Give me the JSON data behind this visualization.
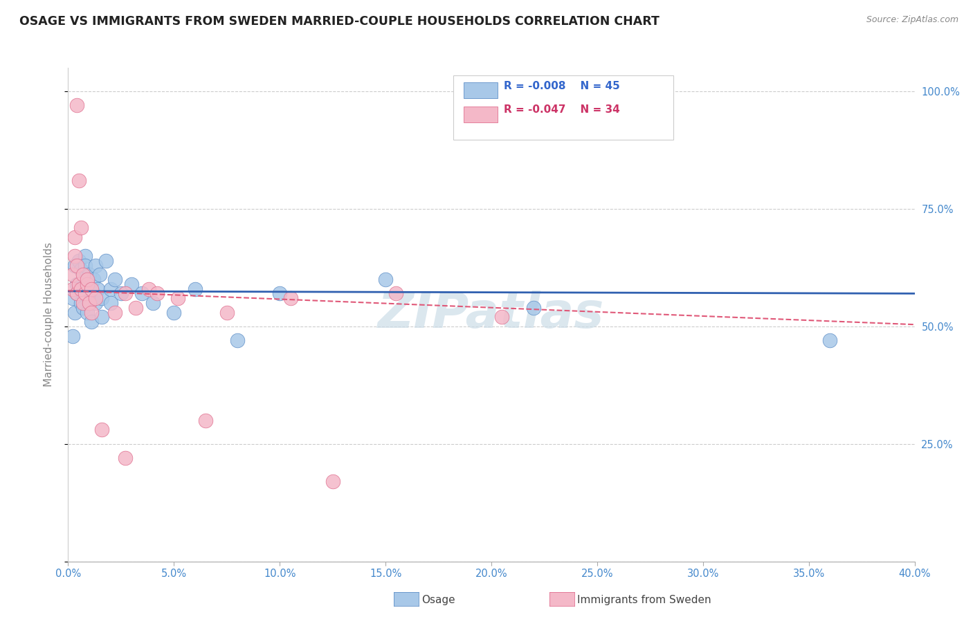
{
  "title": "OSAGE VS IMMIGRANTS FROM SWEDEN MARRIED-COUPLE HOUSEHOLDS CORRELATION CHART",
  "source": "Source: ZipAtlas.com",
  "ylabel": "Married-couple Households",
  "legend_blue_label": "Osage",
  "legend_pink_label": "Immigrants from Sweden",
  "blue_R": "R = -0.008",
  "blue_N": "N = 45",
  "pink_R": "R = -0.047",
  "pink_N": "N = 34",
  "blue_scatter_color": "#a8c8e8",
  "pink_scatter_color": "#f4b8c8",
  "blue_edge_color": "#6090c8",
  "pink_edge_color": "#e07090",
  "blue_line_color": "#3060b0",
  "pink_line_color": "#e05878",
  "text_color": "#3366cc",
  "axis_color": "#4488cc",
  "watermark": "ZIPatlas",
  "watermark_color": "#ccdde8",
  "grid_color": "#cccccc",
  "xlim": [
    0.0,
    0.4
  ],
  "ylim": [
    0.0,
    1.05
  ],
  "xticks": [
    0.0,
    0.05,
    0.1,
    0.15,
    0.2,
    0.25,
    0.3,
    0.35,
    0.4
  ],
  "xticklabels": [
    "0.0%",
    "5.0%",
    "10.0%",
    "15.0%",
    "20.0%",
    "25.0%",
    "30.0%",
    "35.0%",
    "40.0%"
  ],
  "yticks_right": [
    0.25,
    0.5,
    0.75,
    1.0
  ],
  "yticklabels_right": [
    "25.0%",
    "50.0%",
    "75.0%",
    "100.0%"
  ],
  "blue_scatter": [
    [
      0.002,
      0.56
    ],
    [
      0.003,
      0.53
    ],
    [
      0.002,
      0.48
    ],
    [
      0.004,
      0.59
    ],
    [
      0.003,
      0.63
    ],
    [
      0.004,
      0.57
    ],
    [
      0.005,
      0.64
    ],
    [
      0.005,
      0.58
    ],
    [
      0.006,
      0.62
    ],
    [
      0.006,
      0.55
    ],
    [
      0.007,
      0.54
    ],
    [
      0.007,
      0.61
    ],
    [
      0.007,
      0.57
    ],
    [
      0.008,
      0.65
    ],
    [
      0.008,
      0.63
    ],
    [
      0.008,
      0.57
    ],
    [
      0.009,
      0.59
    ],
    [
      0.009,
      0.53
    ],
    [
      0.01,
      0.61
    ],
    [
      0.01,
      0.55
    ],
    [
      0.011,
      0.57
    ],
    [
      0.011,
      0.51
    ],
    [
      0.012,
      0.6
    ],
    [
      0.012,
      0.57
    ],
    [
      0.013,
      0.63
    ],
    [
      0.013,
      0.55
    ],
    [
      0.014,
      0.58
    ],
    [
      0.015,
      0.61
    ],
    [
      0.016,
      0.56
    ],
    [
      0.016,
      0.52
    ],
    [
      0.018,
      0.64
    ],
    [
      0.02,
      0.58
    ],
    [
      0.02,
      0.55
    ],
    [
      0.022,
      0.6
    ],
    [
      0.025,
      0.57
    ],
    [
      0.03,
      0.59
    ],
    [
      0.035,
      0.57
    ],
    [
      0.04,
      0.55
    ],
    [
      0.05,
      0.53
    ],
    [
      0.06,
      0.58
    ],
    [
      0.08,
      0.47
    ],
    [
      0.1,
      0.57
    ],
    [
      0.15,
      0.6
    ],
    [
      0.22,
      0.54
    ],
    [
      0.36,
      0.47
    ]
  ],
  "pink_scatter": [
    [
      0.002,
      0.61
    ],
    [
      0.002,
      0.58
    ],
    [
      0.003,
      0.69
    ],
    [
      0.003,
      0.65
    ],
    [
      0.004,
      0.97
    ],
    [
      0.004,
      0.63
    ],
    [
      0.004,
      0.57
    ],
    [
      0.005,
      0.59
    ],
    [
      0.005,
      0.81
    ],
    [
      0.006,
      0.71
    ],
    [
      0.006,
      0.58
    ],
    [
      0.007,
      0.55
    ],
    [
      0.007,
      0.61
    ],
    [
      0.008,
      0.57
    ],
    [
      0.009,
      0.59
    ],
    [
      0.009,
      0.6
    ],
    [
      0.01,
      0.55
    ],
    [
      0.011,
      0.53
    ],
    [
      0.011,
      0.58
    ],
    [
      0.013,
      0.56
    ],
    [
      0.016,
      0.28
    ],
    [
      0.022,
      0.53
    ],
    [
      0.027,
      0.22
    ],
    [
      0.027,
      0.57
    ],
    [
      0.032,
      0.54
    ],
    [
      0.038,
      0.58
    ],
    [
      0.042,
      0.57
    ],
    [
      0.052,
      0.56
    ],
    [
      0.065,
      0.3
    ],
    [
      0.075,
      0.53
    ],
    [
      0.105,
      0.56
    ],
    [
      0.125,
      0.17
    ],
    [
      0.155,
      0.57
    ],
    [
      0.205,
      0.52
    ]
  ],
  "blue_trend_x": [
    0.0,
    0.4
  ],
  "blue_trend_y": [
    0.575,
    0.57
  ],
  "pink_trend_x": [
    0.0,
    0.4
  ],
  "pink_trend_y": [
    0.576,
    0.504
  ]
}
